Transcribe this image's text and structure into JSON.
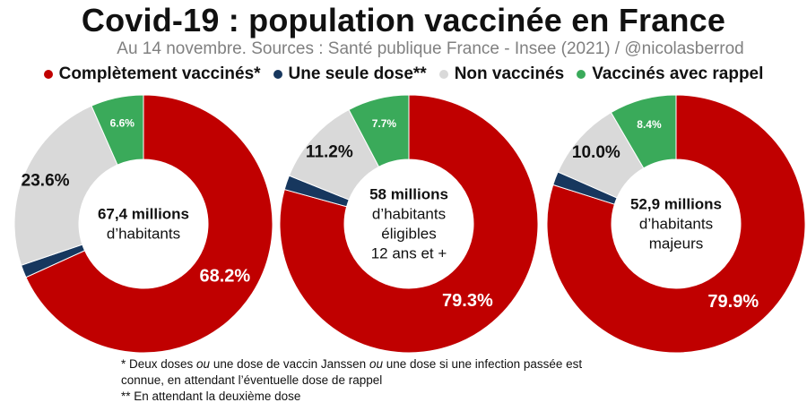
{
  "title": "Covid-19 : population vaccinée en France",
  "subtitle": "Au 14 novembre. Sources : Santé publique France - Insee (2021) / @nicolasberrod",
  "legend": [
    {
      "label": "Complètement vaccinés*",
      "color": "#c00000"
    },
    {
      "label": "Une seule dose**",
      "color": "#17375e"
    },
    {
      "label": "Non vaccinés",
      "color": "#d9d9d9"
    },
    {
      "label": "Vaccinés avec rappel",
      "color": "#3aaa5a"
    }
  ],
  "chart_data": [
    {
      "type": "pie",
      "donut": true,
      "center_label": [
        "67,4 millions",
        "d’habitants"
      ],
      "slices": [
        {
          "name": "Complètement vaccinés*",
          "value": 68.2,
          "label": "68.2%",
          "color": "#c00000"
        },
        {
          "name": "Une seule dose**",
          "value": 1.6,
          "label": "",
          "color": "#17375e"
        },
        {
          "name": "Non vaccinés",
          "value": 23.6,
          "label": "23.6%",
          "color": "#d9d9d9"
        },
        {
          "name": "Vaccinés avec rappel",
          "value": 6.6,
          "label": "6.6%",
          "color": "#3aaa5a"
        }
      ]
    },
    {
      "type": "pie",
      "donut": true,
      "center_label": [
        "58 millions",
        "d’habitants",
        "éligibles",
        "12 ans et +"
      ],
      "slices": [
        {
          "name": "Complètement vaccinés*",
          "value": 79.3,
          "label": "79.3%",
          "color": "#c00000"
        },
        {
          "name": "Une seule dose**",
          "value": 1.8,
          "label": "",
          "color": "#17375e"
        },
        {
          "name": "Non vaccinés",
          "value": 11.2,
          "label": "11.2%",
          "color": "#d9d9d9"
        },
        {
          "name": "Vaccinés avec rappel",
          "value": 7.7,
          "label": "7.7%",
          "color": "#3aaa5a"
        }
      ]
    },
    {
      "type": "pie",
      "donut": true,
      "center_label": [
        "52,9 millions",
        "d’habitants",
        "majeurs"
      ],
      "slices": [
        {
          "name": "Complètement vaccinés*",
          "value": 79.9,
          "label": "79.9%",
          "color": "#c00000"
        },
        {
          "name": "Une seule dose**",
          "value": 1.7,
          "label": "",
          "color": "#17375e"
        },
        {
          "name": "Non vaccinés",
          "value": 10.0,
          "label": "10.0%",
          "color": "#d9d9d9"
        },
        {
          "name": "Vaccinés avec rappel",
          "value": 8.4,
          "label": "8.4%",
          "color": "#3aaa5a"
        }
      ]
    }
  ],
  "footnotes": {
    "line1_a": "* Deux doses ",
    "line1_ou1": "ou",
    "line1_b": " une dose de vaccin Janssen ",
    "line1_ou2": "ou",
    "line1_c": " une dose si une infection passée est",
    "line2": "connue, en attendant l’éventuelle dose de rappel",
    "line3": "** En attendant la deuxième dose"
  }
}
